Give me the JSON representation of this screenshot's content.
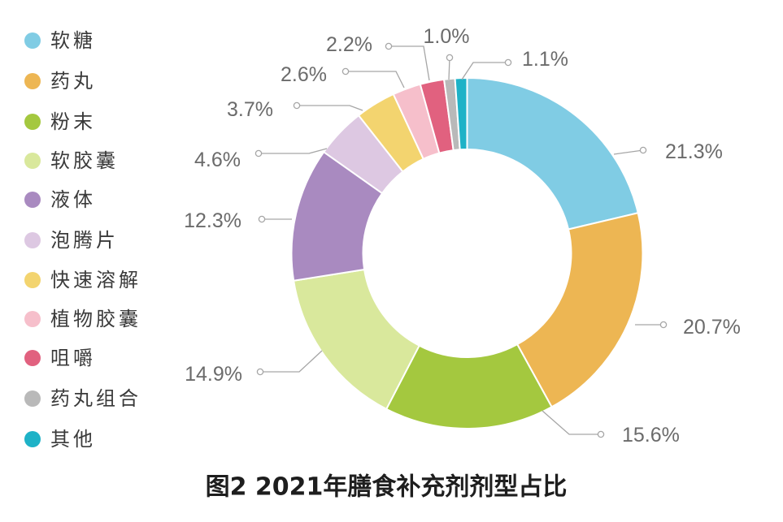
{
  "chart_data": {
    "type": "pie",
    "donut": true,
    "title": "图2 2021年膳食补充剂剂型占比",
    "categories": [
      "软糖",
      "药丸",
      "粉末",
      "软胶囊",
      "液体",
      "泡腾片",
      "快速溶解",
      "植物胶囊",
      "咀嚼",
      "药丸组合",
      "其他"
    ],
    "values": [
      21.3,
      20.7,
      15.6,
      14.9,
      12.3,
      4.6,
      3.7,
      2.6,
      2.2,
      1.0,
      1.1
    ],
    "data_labels": [
      "21.3%",
      "20.7%",
      "15.6%",
      "14.9%",
      "12.3%",
      "4.6%",
      "3.7%",
      "2.6%",
      "2.2%",
      "1.0%",
      "1.1%"
    ],
    "colors": [
      "#80CCE4",
      "#EDB653",
      "#A4C83F",
      "#D9E89C",
      "#A98AC0",
      "#DDC8E2",
      "#F3D46F",
      "#F6BFCB",
      "#E1617F",
      "#B9B9B9",
      "#1EB2C7"
    ],
    "legend": "left"
  }
}
